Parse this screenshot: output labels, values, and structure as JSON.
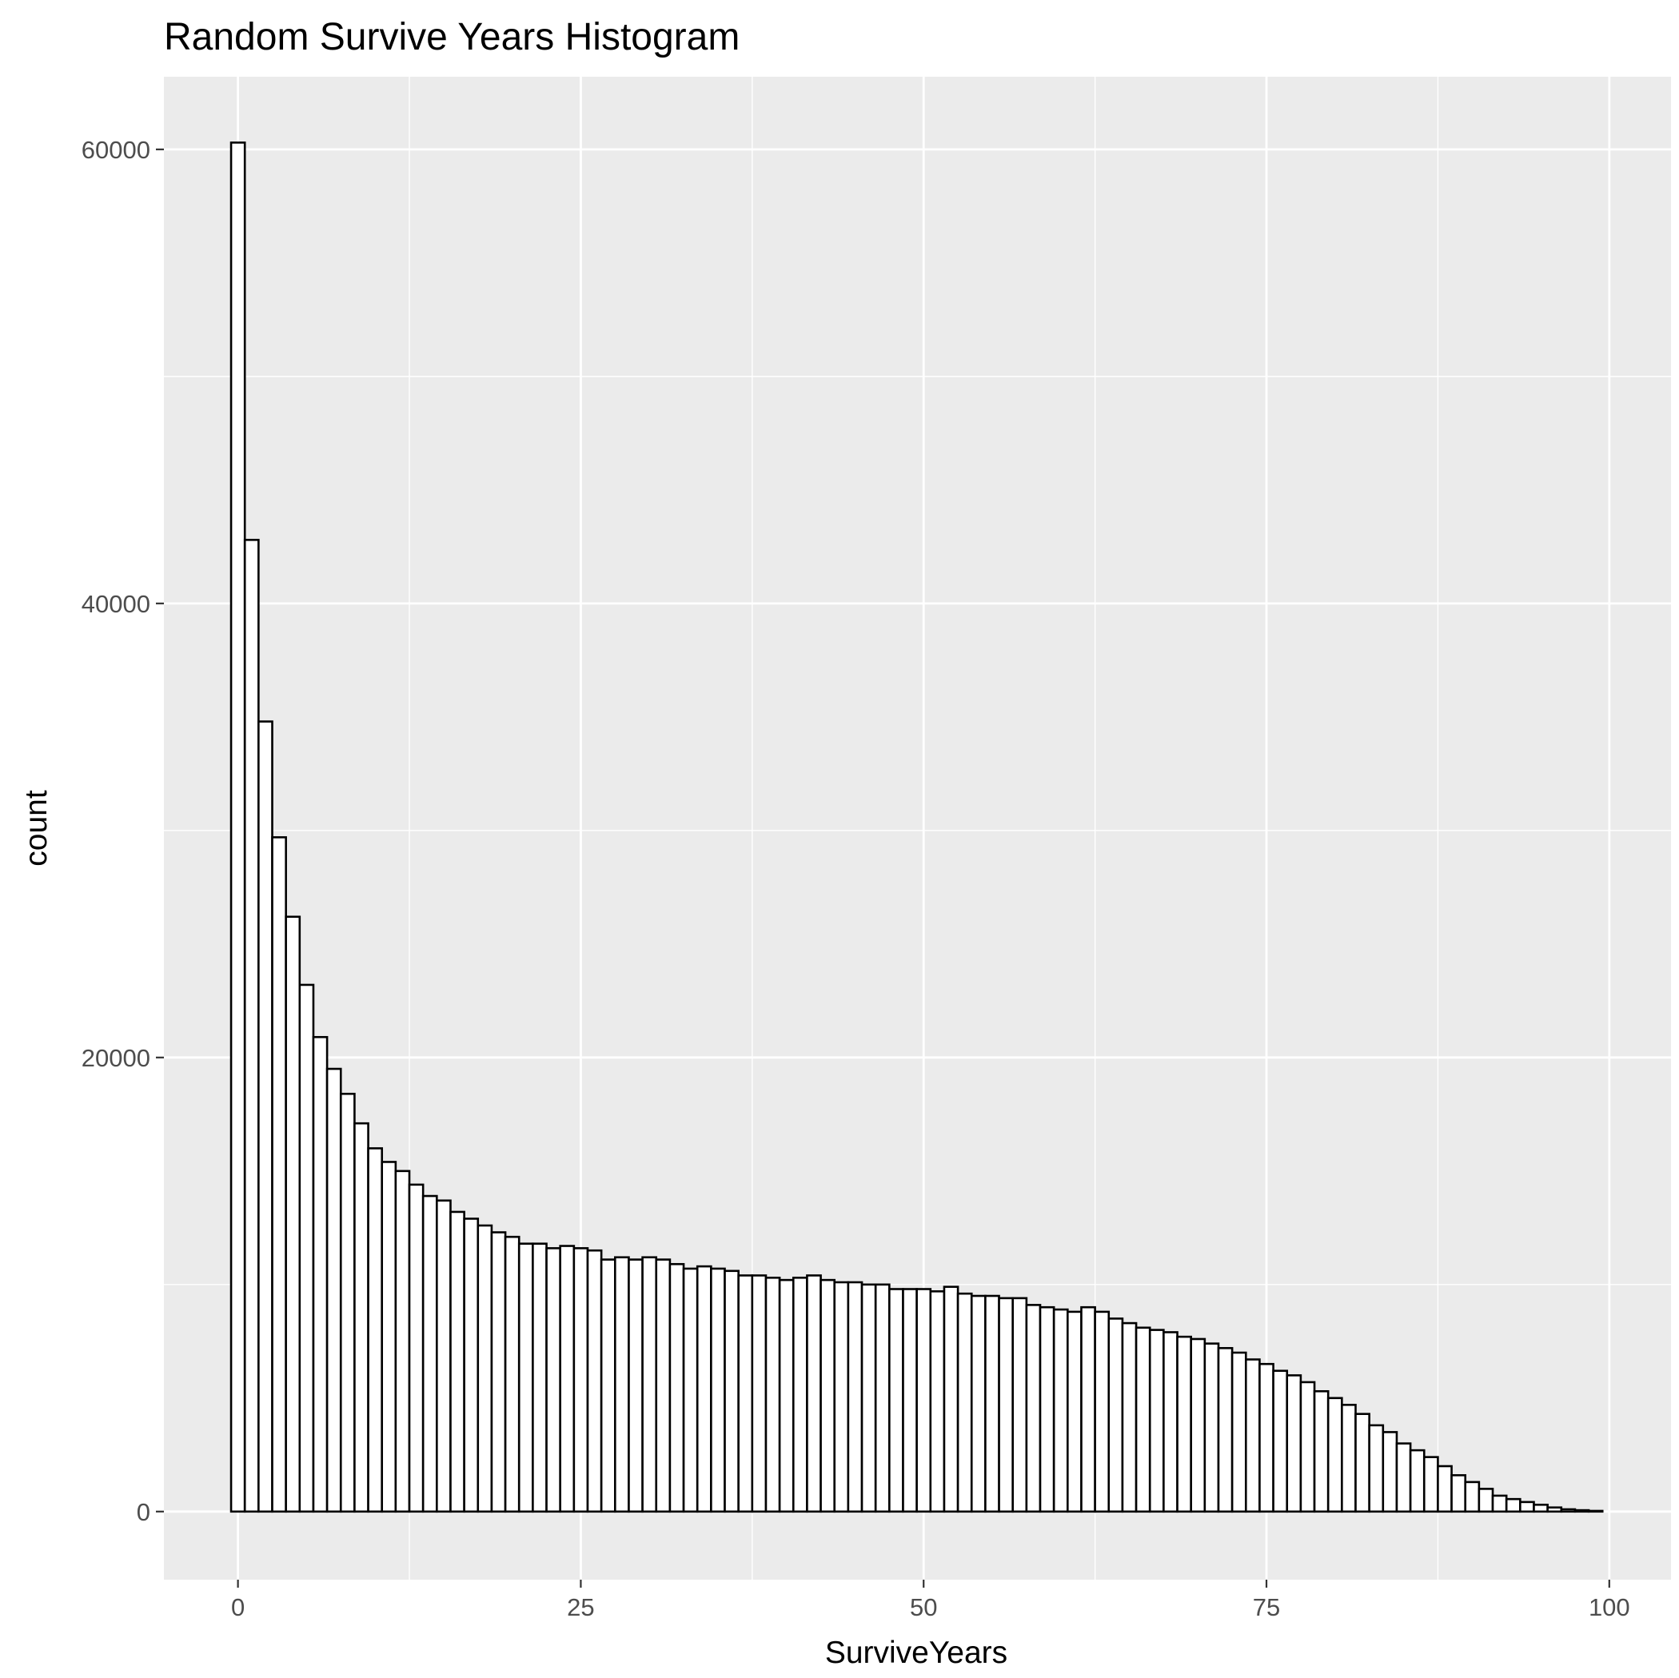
{
  "chart_data": {
    "type": "bar",
    "title": "Random Survive Years Histogram",
    "xlabel": "SurviveYears",
    "ylabel": "count",
    "x_ticks": [
      0,
      25,
      50,
      75,
      100
    ],
    "y_ticks": [
      0,
      20000,
      40000,
      60000
    ],
    "xlim": [
      -5.4,
      104.5
    ],
    "ylim": [
      -3000,
      63200
    ],
    "grid": true,
    "legend": "none",
    "bin_width": 1,
    "bin_centers_start": 0,
    "values": [
      60300,
      42800,
      34800,
      29700,
      26200,
      23200,
      20900,
      19500,
      18400,
      17100,
      16000,
      15400,
      15000,
      14400,
      13900,
      13700,
      13200,
      12900,
      12600,
      12300,
      12100,
      11800,
      11800,
      11600,
      11700,
      11600,
      11500,
      11100,
      11200,
      11100,
      11200,
      11100,
      10900,
      10700,
      10800,
      10700,
      10600,
      10400,
      10400,
      10300,
      10200,
      10300,
      10400,
      10200,
      10100,
      10100,
      10000,
      10000,
      9800,
      9800,
      9800,
      9700,
      9900,
      9600,
      9500,
      9500,
      9400,
      9400,
      9100,
      9000,
      8900,
      8800,
      9000,
      8800,
      8500,
      8300,
      8100,
      8000,
      7900,
      7700,
      7600,
      7400,
      7200,
      7000,
      6700,
      6500,
      6200,
      6000,
      5700,
      5300,
      5000,
      4700,
      4300,
      3800,
      3500,
      3000,
      2700,
      2400,
      2000,
      1600,
      1300,
      1000,
      700,
      550,
      420,
      300,
      180,
      100,
      60,
      30
    ],
    "colors": {
      "panel": "#ebebeb",
      "grid_major": "#ffffff",
      "bar_fill": "#ffffff",
      "bar_outline": "#000000",
      "tick_text": "#4d4d4d",
      "tick_mark": "#333333"
    }
  }
}
